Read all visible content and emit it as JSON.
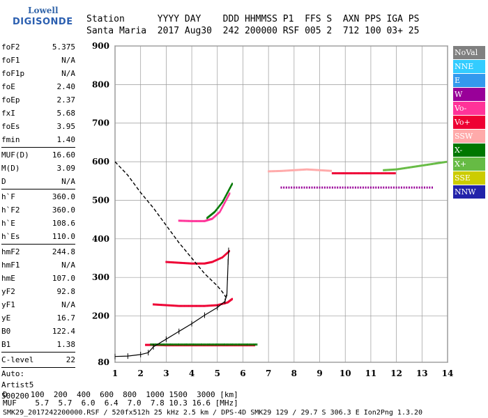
{
  "logo": {
    "line1": "Lowell",
    "line2": "DIGISONDE"
  },
  "header": {
    "row1": "Station      YYYY DAY    DDD HHMMSS P1  FFS S  AXN PPS IGA PS",
    "row2": "Santa Maria  2017 Aug30  242 200000 RSF 005 2  712 100 03+ 25"
  },
  "params": {
    "group1": [
      {
        "k": "foF2",
        "v": "5.375"
      },
      {
        "k": "foF1",
        "v": "N/A"
      },
      {
        "k": "foF1p",
        "v": "N/A"
      },
      {
        "k": "foE",
        "v": "2.40"
      },
      {
        "k": "foEp",
        "v": "2.37"
      },
      {
        "k": "fxI",
        "v": "5.68"
      },
      {
        "k": "foEs",
        "v": "3.95"
      },
      {
        "k": "fmin",
        "v": "1.40"
      }
    ],
    "group2": [
      {
        "k": "MUF(D)",
        "v": "16.60"
      },
      {
        "k": "M(D)",
        "v": "3.09"
      },
      {
        "k": "D",
        "v": "N/A"
      }
    ],
    "group3": [
      {
        "k": "h`F",
        "v": "360.0"
      },
      {
        "k": "h`F2",
        "v": "360.0"
      },
      {
        "k": "h`E",
        "v": "108.6"
      },
      {
        "k": "h`Es",
        "v": "110.0"
      }
    ],
    "group4": [
      {
        "k": "hmF2",
        "v": "244.8"
      },
      {
        "k": "hmF1",
        "v": "N/A"
      },
      {
        "k": "hmE",
        "v": "107.0"
      },
      {
        "k": "yF2",
        "v": "92.8"
      },
      {
        "k": "yF1",
        "v": "N/A"
      },
      {
        "k": "yE",
        "v": "16.7"
      },
      {
        "k": "B0",
        "v": "122.4"
      },
      {
        "k": "B1",
        "v": "1.38"
      }
    ],
    "group5": [
      {
        "k": "C-level",
        "v": "22"
      }
    ],
    "footer": [
      "Auto:",
      "Artist5",
      "500200"
    ]
  },
  "legend": [
    {
      "label": "NoVal",
      "color": "#808080"
    },
    {
      "label": "NNE",
      "color": "#33ccff"
    },
    {
      "label": "E",
      "color": "#3399ee"
    },
    {
      "label": "W",
      "color": "#990099"
    },
    {
      "label": "Vo-",
      "color": "#ff3399"
    },
    {
      "label": "Vo+",
      "color": "#ee0033"
    },
    {
      "label": "SSW",
      "color": "#ffaaaa"
    },
    {
      "label": "X-",
      "color": "#007700"
    },
    {
      "label": "X+",
      "color": "#66bb44"
    },
    {
      "label": "SSE",
      "color": "#cccc00"
    },
    {
      "label": "NNW",
      "color": "#2222aa"
    }
  ],
  "bottom": {
    "row1": "D     100  200  400  600  800  1000 1500  3000 [km]",
    "row2": "MUF    5.7  5.7  6.0  6.4  7.0  7.8 10.3 16.6 [MHz]",
    "row3": "SMK29_2017242200000.RSF / 520fx512h 25 kHz 2.5 km / DPS-4D SMK29 129 / 29.7 S 306.3 E Ion2Png 1.3.20"
  },
  "chart_data": {
    "type": "scatter",
    "title": "",
    "xlabel": "",
    "ylabel": "",
    "xlim": [
      1,
      14
    ],
    "ylim": [
      80,
      900
    ],
    "x_ticks": [
      1,
      2,
      3,
      4,
      5,
      6,
      7,
      8,
      9,
      10,
      11,
      12,
      13,
      14
    ],
    "y_ticks": [
      80,
      200,
      300,
      400,
      500,
      600,
      700,
      800,
      900
    ],
    "grid": true,
    "traces": [
      {
        "name": "",
        "color": "#ee0033",
        "points": [
          [
            2.2,
            125
          ],
          [
            2.5,
            125
          ],
          [
            3.0,
            124
          ],
          [
            3.5,
            124
          ],
          [
            4.0,
            124
          ],
          [
            4.5,
            124
          ],
          [
            5.0,
            124
          ],
          [
            5.5,
            124
          ],
          [
            6.0,
            124
          ],
          [
            6.5,
            124
          ]
        ]
      },
      {
        "name": "",
        "color": "#007700",
        "points": [
          [
            2.4,
            126
          ],
          [
            3.0,
            126
          ],
          [
            3.6,
            126
          ],
          [
            4.2,
            126
          ],
          [
            4.8,
            126
          ],
          [
            5.4,
            126
          ],
          [
            6.0,
            126
          ],
          [
            6.6,
            126
          ]
        ]
      },
      {
        "name": "",
        "color": "#ee0033",
        "points": [
          [
            2.5,
            230
          ],
          [
            3.0,
            228
          ],
          [
            3.5,
            226
          ],
          [
            4.0,
            226
          ],
          [
            4.5,
            226
          ],
          [
            5.0,
            228
          ],
          [
            5.4,
            235
          ],
          [
            5.6,
            245
          ]
        ]
      },
      {
        "name": "",
        "color": "#ee0033",
        "points": [
          [
            3.0,
            340
          ],
          [
            3.5,
            338
          ],
          [
            4.0,
            336
          ],
          [
            4.5,
            336
          ],
          [
            4.8,
            340
          ],
          [
            5.2,
            352
          ],
          [
            5.5,
            370
          ]
        ]
      },
      {
        "name": "",
        "color": "#ff3399",
        "points": [
          [
            3.5,
            447
          ],
          [
            4.0,
            446
          ],
          [
            4.5,
            446
          ],
          [
            4.8,
            452
          ],
          [
            5.1,
            470
          ],
          [
            5.3,
            495
          ],
          [
            5.5,
            520
          ]
        ]
      },
      {
        "name": "",
        "color": "#007700",
        "points": [
          [
            4.6,
            454
          ],
          [
            4.9,
            470
          ],
          [
            5.2,
            495
          ],
          [
            5.4,
            520
          ],
          [
            5.6,
            545
          ]
        ]
      },
      {
        "name": "",
        "color": "#ffaaaa",
        "points": [
          [
            7.0,
            575
          ],
          [
            7.5,
            576
          ],
          [
            8.0,
            578
          ],
          [
            8.5,
            580
          ],
          [
            9.0,
            578
          ],
          [
            9.5,
            576
          ]
        ]
      },
      {
        "name": "",
        "color": "#ee0033",
        "points": [
          [
            9.5,
            570
          ],
          [
            10.0,
            570
          ],
          [
            10.5,
            570
          ],
          [
            11.0,
            570
          ],
          [
            11.5,
            570
          ],
          [
            12.0,
            570
          ]
        ]
      },
      {
        "name": "",
        "color": "#66bb44",
        "points": [
          [
            11.5,
            578
          ],
          [
            12.0,
            580
          ],
          [
            12.5,
            585
          ],
          [
            13.0,
            590
          ],
          [
            13.5,
            595
          ],
          [
            14.0,
            600
          ]
        ]
      },
      {
        "name": "",
        "color": "#990099",
        "points": [
          [
            7.5,
            533
          ],
          [
            8.5,
            533
          ],
          [
            9.5,
            533
          ],
          [
            10.5,
            533
          ],
          [
            11.5,
            533
          ],
          [
            12.5,
            533
          ],
          [
            13.5,
            533
          ]
        ]
      }
    ],
    "true_height_profile": [
      [
        1.0,
        600
      ],
      [
        1.5,
        565
      ],
      [
        2.0,
        520
      ],
      [
        2.5,
        480
      ],
      [
        3.0,
        435
      ],
      [
        3.5,
        390
      ],
      [
        4.0,
        350
      ],
      [
        4.5,
        310
      ],
      [
        5.0,
        278
      ],
      [
        5.2,
        262
      ],
      [
        5.375,
        244.8
      ]
    ],
    "trace_fit": [
      [
        1.0,
        95
      ],
      [
        1.5,
        96
      ],
      [
        2.0,
        100
      ],
      [
        2.3,
        105
      ],
      [
        2.5,
        120
      ],
      [
        3.0,
        140
      ],
      [
        3.5,
        160
      ],
      [
        4.0,
        180
      ],
      [
        4.5,
        202
      ],
      [
        5.0,
        222
      ],
      [
        5.3,
        238
      ],
      [
        5.375,
        258
      ],
      [
        5.4,
        300
      ],
      [
        5.42,
        340
      ],
      [
        5.44,
        370
      ]
    ]
  }
}
